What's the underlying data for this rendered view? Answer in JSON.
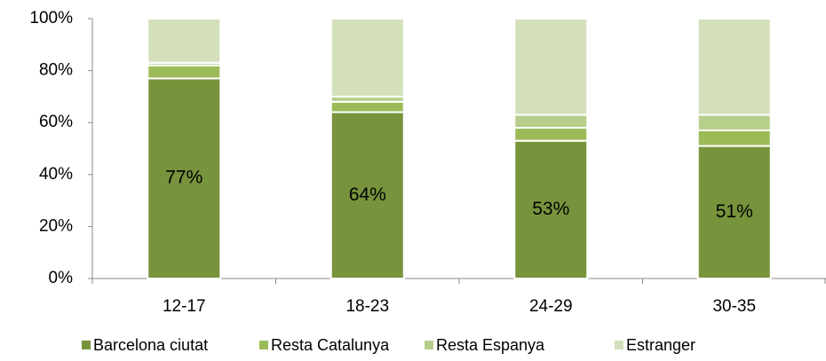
{
  "chart_data": {
    "type": "stacked_bar",
    "categories": [
      "12-17",
      "18-23",
      "24-29",
      "30-35"
    ],
    "series": [
      {
        "name": "Barcelona ciutat",
        "color": "#77933c",
        "values": [
          77,
          64,
          53,
          51
        ],
        "value_labels": [
          "77%",
          "64%",
          "53%",
          "51%"
        ]
      },
      {
        "name": "Resta Catalunya",
        "color": "#9bbb59",
        "values": [
          5,
          4,
          5,
          6
        ]
      },
      {
        "name": "Resta Espanya",
        "color": "#b8cf8c",
        "values": [
          1,
          2,
          5,
          6
        ]
      },
      {
        "name": "Estranger",
        "color": "#d3e0bb",
        "values": [
          17,
          30,
          37,
          37
        ]
      }
    ],
    "ylim": [
      0,
      100
    ],
    "yticks": [
      {
        "value": 0,
        "label": "0%"
      },
      {
        "value": 20,
        "label": "20%"
      },
      {
        "value": 40,
        "label": "40%"
      },
      {
        "value": 60,
        "label": "60%"
      },
      {
        "value": 80,
        "label": "80%"
      },
      {
        "value": 100,
        "label": "100%"
      }
    ],
    "legend": "bottom"
  }
}
